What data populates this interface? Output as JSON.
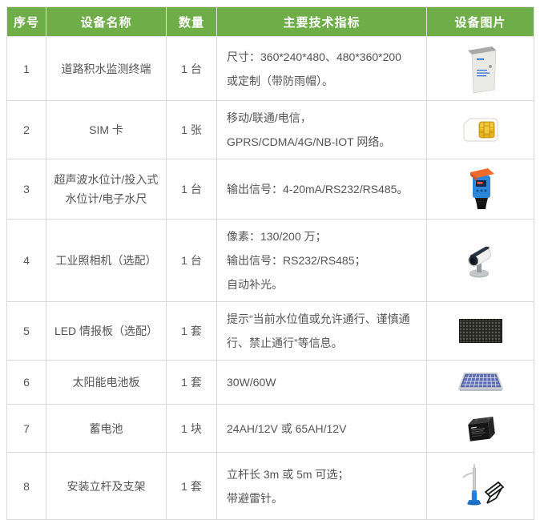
{
  "header": {
    "col_index": "序号",
    "col_name": "设备名称",
    "col_qty": "数量",
    "col_spec": "主要技术指标",
    "col_image": "设备图片"
  },
  "colors": {
    "header_bg": "#6fad49",
    "header_text": "#ffffff",
    "border": "#d9d9d9",
    "text": "#555555"
  },
  "rows": [
    {
      "index": "1",
      "name_lines": [
        "道路积水监测终端"
      ],
      "qty": "1 台",
      "spec_lines": [
        "尺寸：360*240*480、480*360*200",
        "或定制（带防雨帽）。"
      ],
      "image": "cabinet-image"
    },
    {
      "index": "2",
      "name_lines": [
        "SIM 卡"
      ],
      "qty": "1 张",
      "spec_lines": [
        "移动/联通/电信，",
        "GPRS/CDMA/4G/NB-IOT 网络。"
      ],
      "image": "sim-card-image"
    },
    {
      "index": "3",
      "name_lines": [
        "超声波水位计/投入式",
        "水位计/电子水尺"
      ],
      "qty": "1 台",
      "spec_lines": [
        "输出信号：4-20mA/RS232/RS485。"
      ],
      "image": "ultrasonic-sensor-image"
    },
    {
      "index": "4",
      "name_lines": [
        "工业照相机（选配）"
      ],
      "qty": "1 台",
      "spec_lines": [
        "像素：130/200 万；",
        "输出信号：RS232/RS485；",
        "自动补光。"
      ],
      "image": "camera-image"
    },
    {
      "index": "5",
      "name_lines": [
        "LED 情报板（选配）"
      ],
      "qty": "1 套",
      "spec_lines": [
        "提示“当前水位值或允许通行、谨慎通",
        "行、禁止通行”等信息。"
      ],
      "image": "led-panel-image"
    },
    {
      "index": "6",
      "name_lines": [
        "太阳能电池板"
      ],
      "qty": "1 套",
      "spec_lines": [
        "30W/60W"
      ],
      "image": "solar-panel-image"
    },
    {
      "index": "7",
      "name_lines": [
        "蓄电池"
      ],
      "qty": "1 块",
      "spec_lines": [
        "24AH/12V 或 65AH/12V"
      ],
      "image": "battery-image"
    },
    {
      "index": "8",
      "name_lines": [
        "安装立杆及支架"
      ],
      "qty": "1 套",
      "spec_lines": [
        "立杆长 3m 或 5m 可选；",
        "带避雷针。"
      ],
      "image": "pole-bracket-image"
    }
  ]
}
